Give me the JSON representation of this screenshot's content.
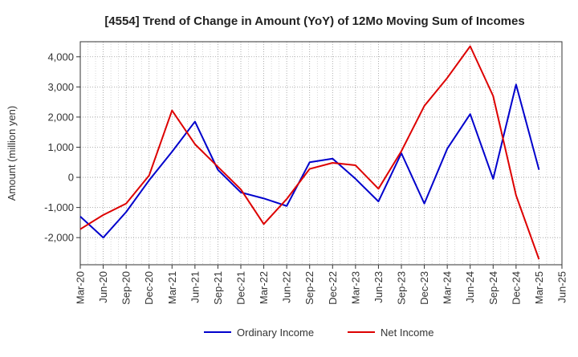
{
  "chart_data": {
    "type": "line",
    "title": "[4554]  Trend of Change in Amount (YoY) of 12Mo Moving Sum of Incomes",
    "ylabel": "Amount (million yen)",
    "xlabel": "",
    "ylim": [
      -2900,
      4500
    ],
    "yticks": [
      -2000,
      -1000,
      0,
      1000,
      2000,
      3000,
      4000
    ],
    "ytick_labels": [
      "-2,000",
      "-1,000",
      "0",
      "1,000",
      "2,000",
      "3,000",
      "4,000"
    ],
    "categories": [
      "Mar-20",
      "Jun-20",
      "Sep-20",
      "Dec-20",
      "Mar-21",
      "Jun-21",
      "Sep-21",
      "Dec-21",
      "Mar-22",
      "Jun-22",
      "Sep-22",
      "Dec-22",
      "Mar-23",
      "Jun-23",
      "Sep-23",
      "Dec-23",
      "Mar-24",
      "Jun-24",
      "Sep-24",
      "Dec-24",
      "Mar-25",
      "Jun-25"
    ],
    "grid": true,
    "legend_position": "bottom",
    "series": [
      {
        "name": "Ordinary Income",
        "color": "#0000cc",
        "values": [
          -1300,
          -2000,
          -1150,
          -100,
          850,
          1850,
          250,
          -500,
          -700,
          -950,
          500,
          620,
          -50,
          -800,
          800,
          -870,
          950,
          2100,
          -50,
          3080,
          250,
          null
        ]
      },
      {
        "name": "Net Income",
        "color": "#dd0000",
        "values": [
          -1720,
          -1250,
          -870,
          60,
          2220,
          1100,
          350,
          -400,
          -1550,
          -720,
          280,
          480,
          400,
          -380,
          870,
          2370,
          3300,
          4350,
          2700,
          -600,
          -2720,
          null
        ]
      }
    ]
  }
}
